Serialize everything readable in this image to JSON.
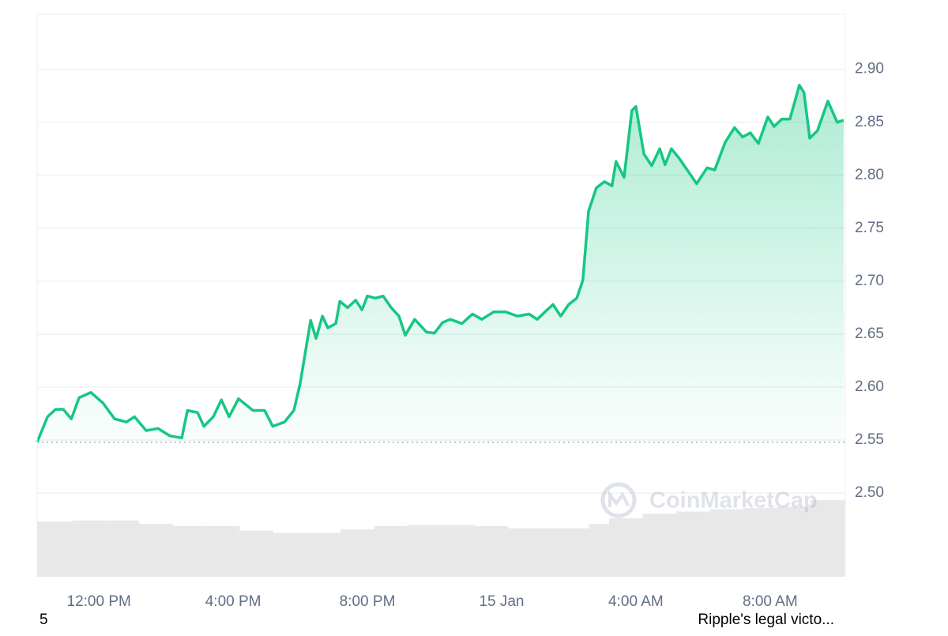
{
  "chart_data": {
    "type": "area",
    "series": [
      {
        "color": "#16c784",
        "x": [
          10.16,
          10.47,
          10.71,
          10.94,
          11.18,
          11.41,
          11.76,
          12.12,
          12.47,
          12.82,
          13.06,
          13.41,
          13.76,
          14.12,
          14.47,
          14.64,
          14.94,
          15.13,
          15.41,
          15.65,
          15.88,
          16.16,
          16.59,
          16.94,
          17.18,
          17.53,
          17.81,
          18.0,
          18.31,
          18.47,
          18.66,
          18.82,
          19.06,
          19.18,
          19.41,
          19.65,
          19.84,
          20.0,
          20.24,
          20.47,
          20.71,
          20.94,
          21.13,
          21.41,
          21.76,
          22.0,
          22.24,
          22.47,
          22.82,
          23.13,
          23.41,
          23.76,
          24.12,
          24.47,
          24.82,
          25.06,
          25.29,
          25.53,
          25.76,
          26.0,
          26.24,
          26.42,
          26.59,
          26.82,
          27.06,
          27.29,
          27.41,
          27.65,
          27.88,
          28.0,
          28.24,
          28.47,
          28.71,
          28.87,
          29.06,
          29.29,
          29.53,
          29.81,
          30.12,
          30.35,
          30.66,
          30.94,
          31.18,
          31.41,
          31.65,
          31.93,
          32.12,
          32.35,
          32.59,
          32.87,
          33.01,
          33.18,
          33.41,
          33.72,
          34.0,
          34.19
        ],
        "values": [
          2.548,
          2.572,
          2.579,
          2.579,
          2.57,
          2.59,
          2.595,
          2.585,
          2.57,
          2.567,
          2.572,
          2.559,
          2.561,
          2.554,
          2.552,
          2.578,
          2.576,
          2.563,
          2.572,
          2.588,
          2.572,
          2.589,
          2.578,
          2.578,
          2.563,
          2.567,
          2.578,
          2.604,
          2.663,
          2.646,
          2.667,
          2.656,
          2.66,
          2.681,
          2.675,
          2.682,
          2.673,
          2.686,
          2.684,
          2.686,
          2.675,
          2.667,
          2.649,
          2.664,
          2.652,
          2.651,
          2.661,
          2.664,
          2.66,
          2.669,
          2.664,
          2.671,
          2.671,
          2.667,
          2.669,
          2.664,
          2.671,
          2.678,
          2.667,
          2.678,
          2.684,
          2.701,
          2.766,
          2.788,
          2.794,
          2.79,
          2.813,
          2.798,
          2.861,
          2.865,
          2.82,
          2.809,
          2.825,
          2.81,
          2.825,
          2.816,
          2.805,
          2.792,
          2.807,
          2.805,
          2.831,
          2.845,
          2.836,
          2.84,
          2.83,
          2.855,
          2.846,
          2.853,
          2.853,
          2.885,
          2.878,
          2.835,
          2.842,
          2.87,
          2.85,
          2.852
        ]
      }
    ],
    "volume": {
      "color": "#e8e8e8",
      "x": [
        10.16,
        11.2,
        12.2,
        13.2,
        14.2,
        15.2,
        16.2,
        17.2,
        18.2,
        19.2,
        20.2,
        21.2,
        22.2,
        23.2,
        24.2,
        25.2,
        26.2,
        26.6,
        27.2,
        28.2,
        29.2,
        30.2,
        31.2,
        32.2,
        33.2,
        34.24
      ],
      "values": [
        49,
        50,
        50,
        47,
        45,
        45,
        41,
        39,
        39,
        42,
        45,
        46,
        46,
        45,
        43,
        43,
        43,
        47,
        52,
        56,
        58,
        60,
        61,
        62,
        68,
        68
      ]
    },
    "y2lim": [
      0,
      500
    ],
    "xlim": [
      10.16,
      34.24
    ],
    "xticks": [
      {
        "value": 12,
        "label": "12:00 PM"
      },
      {
        "value": 16,
        "label": "4:00 PM"
      },
      {
        "value": 20,
        "label": "8:00 PM"
      },
      {
        "value": 24,
        "label": "15 Jan"
      },
      {
        "value": 28,
        "label": "4:00 AM"
      },
      {
        "value": 32,
        "label": "8:00 AM"
      }
    ],
    "ylim": [
      2.421,
      2.952
    ],
    "yticks": [
      {
        "value": 2.5,
        "label": "2.50"
      },
      2.55,
      {
        "value": 2.6,
        "label": "2.60"
      },
      2.65,
      {
        "value": 2.7,
        "label": "2.70"
      },
      2.75,
      {
        "value": 2.8,
        "label": "2.80"
      },
      2.85,
      {
        "value": 2.9,
        "label": "2.90"
      }
    ],
    "grid": true,
    "watermark": "CoinMarketCap"
  },
  "footer": {
    "left": "5",
    "right": "Ripple's legal victo..."
  }
}
